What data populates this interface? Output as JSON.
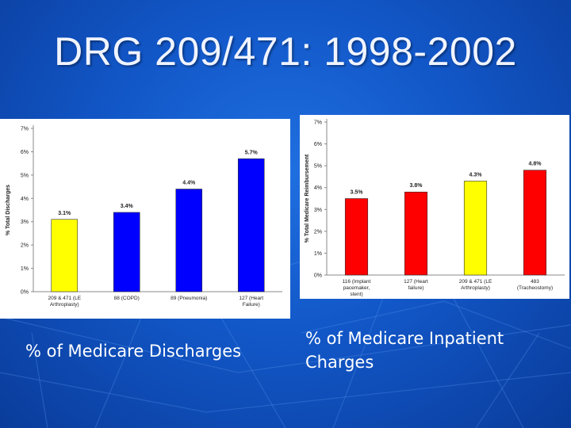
{
  "slide": {
    "title": "DRG 209/471: 1998-2002",
    "caption_left": "% of Medicare Discharges",
    "caption_right": "% of Medicare Inpatient Charges"
  },
  "colors": {
    "background": "#1257c8",
    "yellow": "#ffff00",
    "blue": "#0000ff",
    "red": "#ff0000"
  },
  "chart_data": [
    {
      "type": "bar",
      "categories": [
        "209 & 471 (LE Arthroplasty)",
        "88 (COPD)",
        "89 (Pneumonia)",
        "127 (Heart Failure)"
      ],
      "values": [
        3.1,
        3.4,
        4.4,
        5.7
      ],
      "value_labels": [
        "3.1%",
        "3.4%",
        "4.4%",
        "5.7%"
      ],
      "bar_colors": [
        "#ffff00",
        "#0000ff",
        "#0000ff",
        "#0000ff"
      ],
      "ylabel": "% Total Discharges",
      "yticks": [
        "0%",
        "1%",
        "2%",
        "3%",
        "4%",
        "5%",
        "6%",
        "7%"
      ],
      "ylim": [
        0,
        7
      ],
      "grid": false,
      "legend": "none"
    },
    {
      "type": "bar",
      "categories": [
        "116 (Implant pacemaker, stent)",
        "127 (Heart failure)",
        "209 & 471 (LE Arthroplasty)",
        "483 (Tracheostomy)"
      ],
      "values": [
        3.5,
        3.8,
        4.3,
        4.8
      ],
      "value_labels": [
        "3.5%",
        "3.8%",
        "4.3%",
        "4.8%"
      ],
      "bar_colors": [
        "#ff0000",
        "#ff0000",
        "#ffff00",
        "#ff0000"
      ],
      "ylabel": "% Total Medicare Reimbursement",
      "yticks": [
        "0%",
        "1%",
        "2%",
        "3%",
        "4%",
        "5%",
        "6%",
        "7%"
      ],
      "ylim": [
        0,
        7
      ],
      "grid": false,
      "legend": "none"
    }
  ]
}
